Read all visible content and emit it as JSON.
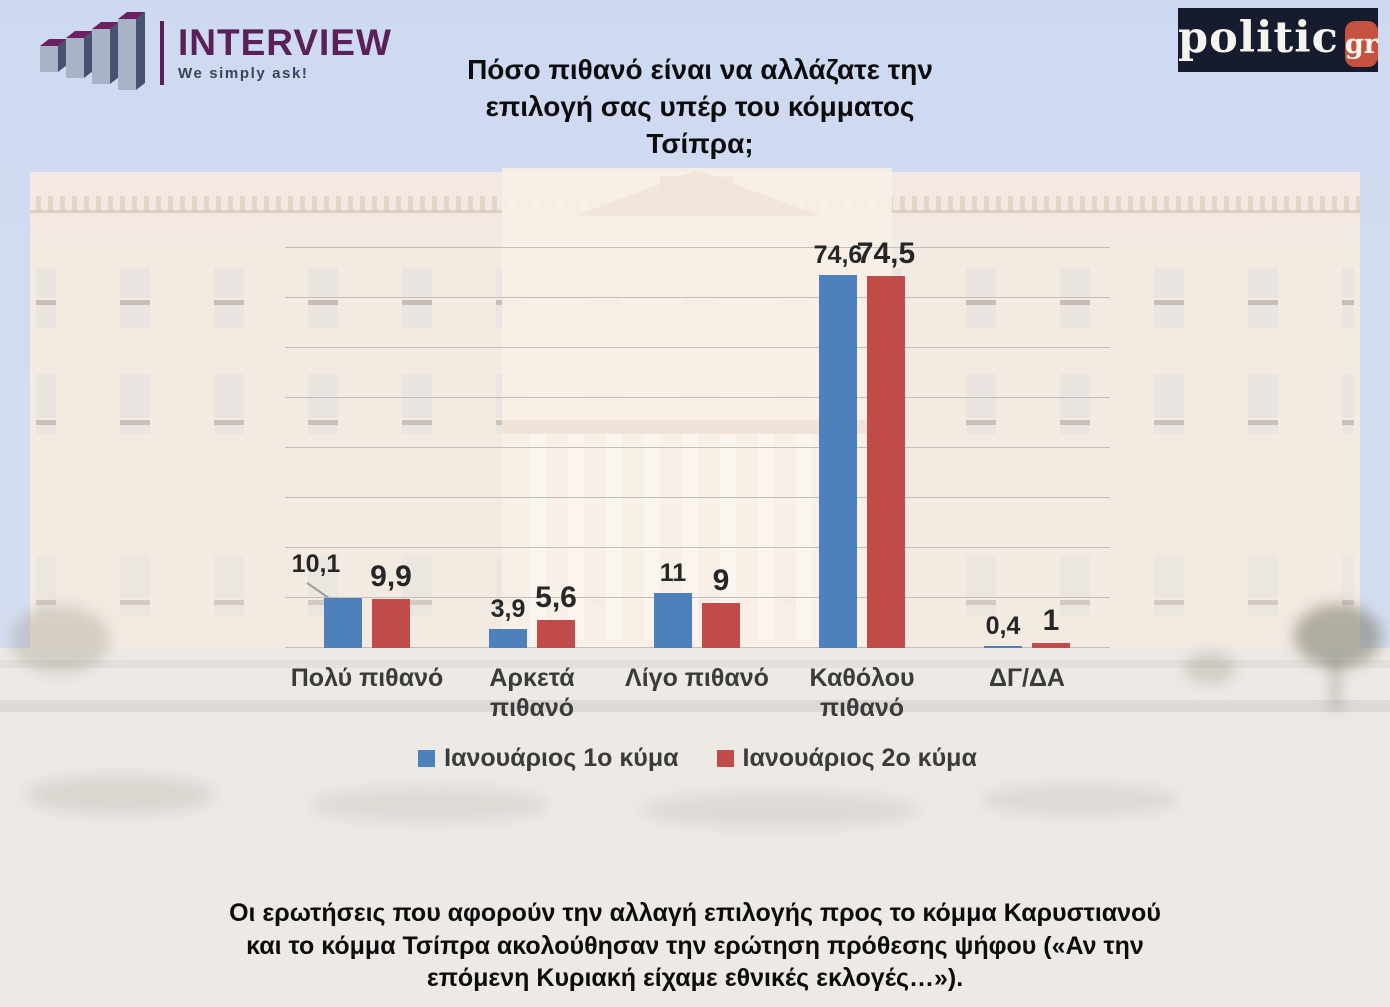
{
  "header": {
    "interview_logo": {
      "name": "INTERVIEW",
      "tagline": "We simply ask!"
    },
    "politic_logo": {
      "word": "politic",
      "suffix": "gr"
    },
    "title_lines": [
      "Πόσο πιθανό είναι να αλλάζατε την",
      "επιλογή σας υπέρ του κόμματος",
      "Τσίπρα;"
    ]
  },
  "brand_colors": {
    "interview_purple": "#5A2158",
    "interview_bar_front": "#A9B3C7",
    "interview_bar_side": "#47526E",
    "politic_background": "#161C2E",
    "politic_badge_red": "#C5523F",
    "series1_blue": "#4D81BC",
    "series2_red": "#C04B48"
  },
  "chart_data": {
    "type": "bar",
    "title": "Πόσο πιθανό είναι να αλλάζατε την επιλογή σας υπέρ του κόμματος Τσίπρα;",
    "categories": [
      "Πολύ πιθανό",
      "Αρκετά πιθανό",
      "Λίγο πιθανό",
      "Καθόλου πιθανό",
      "ΔΓ/ΔΑ"
    ],
    "series": [
      {
        "name": "Ιανουάριος 1ο κύμα",
        "color": "#4D81BC",
        "values": [
          10.1,
          3.9,
          11,
          74.6,
          0.4
        ],
        "labels": [
          "10,1",
          "3,9",
          "11",
          "74,6",
          "0,4"
        ]
      },
      {
        "name": "Ιανουάριος 2ο κύμα",
        "color": "#C04B48",
        "values": [
          9.9,
          5.6,
          9,
          74.5,
          1
        ],
        "labels": [
          "9,9",
          "5,6",
          "9",
          "74,5",
          "1"
        ]
      }
    ],
    "xlabel": "",
    "ylabel": "",
    "ylim": [
      0,
      80
    ],
    "grid_step": 10,
    "grid": true,
    "legend_position": "bottom",
    "value_labels": true,
    "annotations": [
      {
        "series": 0,
        "category": 0,
        "type": "leader-line"
      }
    ]
  },
  "footnote_lines": [
    "Οι ερωτήσεις που αφορούν την αλλαγή επιλογής προς το κόμμα Καρυστιανού",
    "και το κόμμα Τσίπρα ακολούθησαν την ερώτηση πρόθεσης ψήφου («Αν την",
    "επόμενη Κυριακή είχαμε εθνικές εκλογές…»)."
  ]
}
